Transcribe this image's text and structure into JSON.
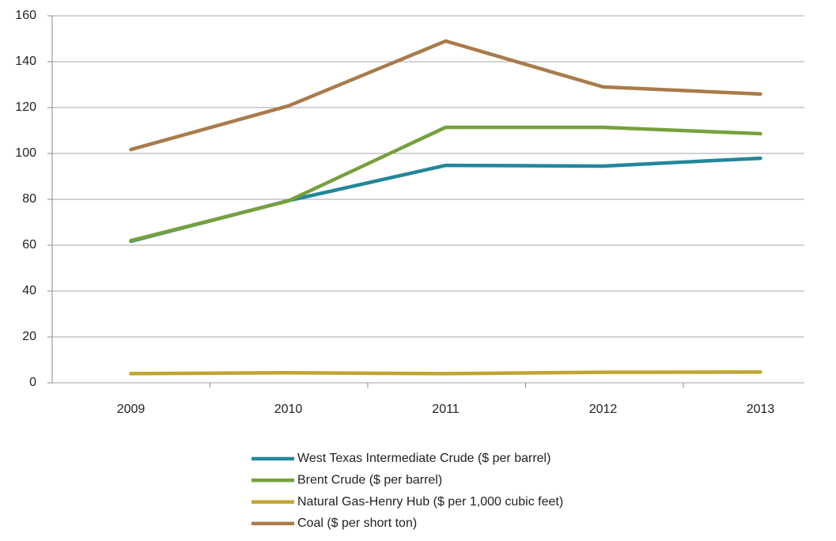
{
  "chart_data": {
    "type": "line",
    "categories": [
      "2009",
      "2010",
      "2011",
      "2012",
      "2013"
    ],
    "series": [
      {
        "name": "West Texas Intermediate Crude ($ per barrel)",
        "color": "#23879a",
        "values": [
          61.7,
          79.4,
          94.8,
          94.5,
          97.9
        ]
      },
      {
        "name": "Brent Crude ($ per barrel)",
        "color": "#77a03c",
        "values": [
          62,
          79.3,
          111.4,
          111.4,
          108.6
        ]
      },
      {
        "name": "Natural Gas-Henry Hub ($ per 1,000 cubic feet)",
        "color": "#c0a630",
        "values": [
          4,
          4.4,
          4,
          4.6,
          4.7
        ]
      },
      {
        "name": "Coal ($ per short ton)",
        "color": "#a87b4a",
        "values": [
          101.7,
          120.7,
          149,
          129,
          125.9
        ]
      }
    ],
    "ylim": [
      0,
      160
    ],
    "yticks": [
      0,
      20,
      40,
      60,
      80,
      100,
      120,
      140,
      160
    ],
    "grid": true,
    "legend": "bottom"
  }
}
